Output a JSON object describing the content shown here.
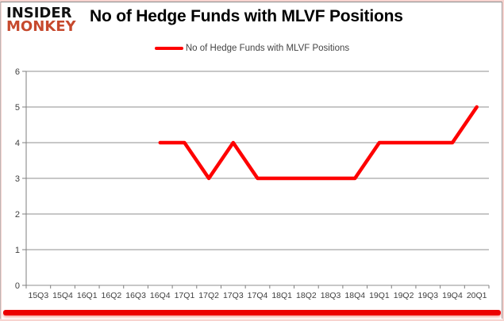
{
  "logo": {
    "line1": "INSIDER",
    "line2": "MONKEY"
  },
  "header": {
    "title": "No of Hedge Funds with MLVF Positions"
  },
  "legend": {
    "label": "No of Hedge Funds with MLVF Positions"
  },
  "colors": {
    "line": "#fe0000",
    "grid": "#8f8f8f",
    "axis": "#7f7f7f",
    "label": "#404040",
    "logo_black": "#111111",
    "logo_red": "#c6492d",
    "bottom_bar": "#ec0000",
    "frame_pink": "#f7d3cf"
  },
  "chart_data": {
    "type": "line",
    "title": "No of Hedge Funds with MLVF Positions",
    "categories": [
      "15Q3",
      "15Q4",
      "16Q1",
      "16Q2",
      "16Q3",
      "16Q4",
      "17Q1",
      "17Q2",
      "17Q3",
      "17Q4",
      "18Q1",
      "18Q2",
      "18Q3",
      "18Q4",
      "19Q1",
      "19Q2",
      "19Q3",
      "19Q4",
      "20Q1"
    ],
    "series": [
      {
        "name": "No of Hedge Funds with MLVF Positions",
        "color": "#fe0000",
        "values": [
          null,
          null,
          null,
          null,
          null,
          4,
          4,
          3,
          4,
          3,
          3,
          3,
          3,
          3,
          4,
          4,
          4,
          4,
          5
        ]
      }
    ],
    "ylim": [
      0,
      6
    ],
    "ytick_step": 1,
    "grid": true,
    "legend_position": "top"
  }
}
